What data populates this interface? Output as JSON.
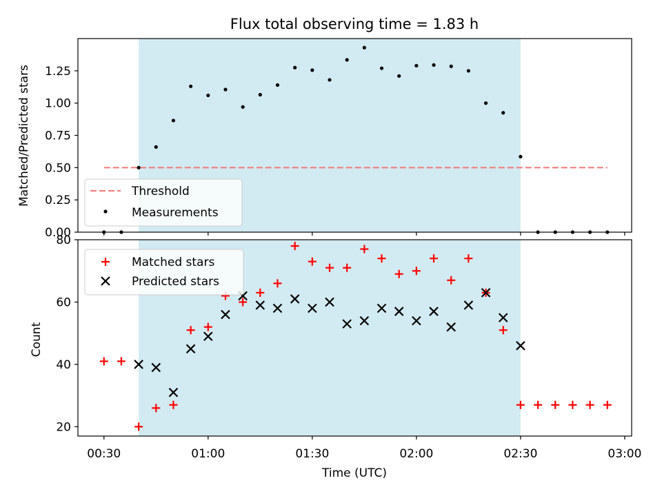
{
  "chart_data": [
    {
      "type": "scatter",
      "title": "Flux total observing time = 1.83 h",
      "xlabel": "",
      "ylabel": "Matched/Predicted stars",
      "xlim": [
        "00:22:30",
        "03:02:00"
      ],
      "ylim": [
        0,
        1.5
      ],
      "yticks": [
        "0.00",
        "0.25",
        "0.50",
        "0.75",
        "1.00",
        "1.25"
      ],
      "xticks": [
        "00:30",
        "01:00",
        "01:30",
        "02:00",
        "02:30",
        "03:00"
      ],
      "shaded_span": [
        "00:40",
        "02:30"
      ],
      "threshold": {
        "name": "Threshold",
        "value": 0.5,
        "x_range": [
          "00:30",
          "02:55"
        ],
        "color": "#f08080"
      },
      "series": [
        {
          "name": "Measurements",
          "marker": "dot",
          "color": "#000000",
          "x": [
            "00:30",
            "00:35",
            "00:40",
            "00:45",
            "00:50",
            "00:55",
            "01:00",
            "01:05",
            "01:10",
            "01:15",
            "01:20",
            "01:25",
            "01:30",
            "01:35",
            "01:40",
            "01:45",
            "01:50",
            "01:55",
            "02:00",
            "02:05",
            "02:10",
            "02:15",
            "02:20",
            "02:25",
            "02:30",
            "02:35",
            "02:40",
            "02:45",
            "02:50",
            "02:55"
          ],
          "values": [
            0,
            0,
            0.5,
            0.66,
            0.865,
            1.13,
            1.06,
            1.105,
            0.97,
            1.065,
            1.14,
            1.275,
            1.255,
            1.18,
            1.335,
            1.43,
            1.27,
            1.21,
            1.29,
            1.295,
            1.285,
            1.25,
            1.0,
            0.925,
            0.585,
            0,
            0,
            0,
            0,
            0
          ]
        }
      ],
      "legend": "lower-left"
    },
    {
      "type": "scatter",
      "title": "",
      "xlabel": "Time (UTC)",
      "ylabel": "Count",
      "xlim": [
        "00:22:30",
        "03:02:00"
      ],
      "ylim": [
        17,
        80
      ],
      "yticks": [
        "20",
        "40",
        "60",
        "80"
      ],
      "xticks": [
        "00:30",
        "01:00",
        "01:30",
        "02:00",
        "02:30",
        "03:00"
      ],
      "shaded_span": [
        "00:40",
        "02:30"
      ],
      "series": [
        {
          "name": "Matched stars",
          "marker": "plus",
          "color": "#ff0000",
          "x": [
            "00:30",
            "00:35",
            "00:40",
            "00:45",
            "00:50",
            "00:55",
            "01:00",
            "01:05",
            "01:10",
            "01:15",
            "01:20",
            "01:25",
            "01:30",
            "01:35",
            "01:40",
            "01:45",
            "01:50",
            "01:55",
            "02:00",
            "02:05",
            "02:10",
            "02:15",
            "02:20",
            "02:25",
            "02:30",
            "02:35",
            "02:40",
            "02:45",
            "02:50",
            "02:55"
          ],
          "values": [
            41,
            41,
            20,
            26,
            27,
            51,
            52,
            62,
            60,
            63,
            66,
            78,
            73,
            71,
            71,
            77,
            74,
            69,
            70,
            74,
            67,
            74,
            63,
            51,
            27,
            27,
            27,
            27,
            27,
            27
          ]
        },
        {
          "name": "Predicted stars",
          "marker": "x",
          "color": "#000000",
          "x": [
            "00:40",
            "00:45",
            "00:50",
            "00:55",
            "01:00",
            "01:05",
            "01:10",
            "01:15",
            "01:20",
            "01:25",
            "01:30",
            "01:35",
            "01:40",
            "01:45",
            "01:50",
            "01:55",
            "02:00",
            "02:05",
            "02:10",
            "02:15",
            "02:20",
            "02:25",
            "02:30"
          ],
          "values": [
            40,
            39,
            31,
            45,
            49,
            56,
            62,
            59,
            58,
            61,
            58,
            60,
            53,
            54,
            58,
            57,
            54,
            57,
            52,
            59,
            63,
            55,
            46
          ]
        }
      ],
      "legend": "upper-left"
    }
  ],
  "colors": {
    "shade": "#add8e6",
    "threshold": "#f08080",
    "matched": "#ff0000",
    "predicted": "#000000"
  }
}
